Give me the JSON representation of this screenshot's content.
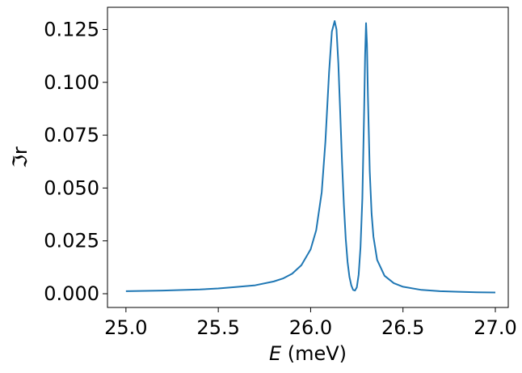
{
  "chart_data": {
    "type": "line",
    "title": "",
    "xlabel_symbol": "E",
    "xlabel_unit": " (meV)",
    "ylabel": "ℑr",
    "xlim": [
      24.9,
      27.07
    ],
    "ylim": [
      -0.0065,
      0.1355
    ],
    "xticks": [
      25.0,
      25.5,
      26.0,
      26.5,
      27.0
    ],
    "xtick_labels": [
      "25.0",
      "25.5",
      "26.0",
      "26.5",
      "27.0"
    ],
    "yticks": [
      0.0,
      0.025,
      0.05,
      0.075,
      0.1,
      0.125
    ],
    "ytick_labels": [
      "0.000",
      "0.025",
      "0.050",
      "0.075",
      "0.100",
      "0.125"
    ],
    "grid": false,
    "series": [
      {
        "color": "#1f77b4",
        "x": [
          25.0,
          25.2,
          25.4,
          25.5,
          25.6,
          25.7,
          25.8,
          25.85,
          25.9,
          25.95,
          26.0,
          26.03,
          26.06,
          26.08,
          26.1,
          26.115,
          26.13,
          26.14,
          26.15,
          26.16,
          26.17,
          26.18,
          26.19,
          26.2,
          26.21,
          26.22,
          26.23,
          26.24,
          26.25,
          26.26,
          26.27,
          26.28,
          26.29,
          26.295,
          26.3,
          26.305,
          26.31,
          26.32,
          26.33,
          26.34,
          26.36,
          26.4,
          26.45,
          26.5,
          26.6,
          26.7,
          26.8,
          26.9,
          27.0
        ],
        "y": [
          0.0012,
          0.0015,
          0.002,
          0.0025,
          0.0032,
          0.004,
          0.0058,
          0.0072,
          0.0095,
          0.0135,
          0.021,
          0.03,
          0.048,
          0.072,
          0.105,
          0.124,
          0.129,
          0.125,
          0.109,
          0.086,
          0.062,
          0.042,
          0.026,
          0.015,
          0.008,
          0.004,
          0.0018,
          0.0015,
          0.003,
          0.009,
          0.022,
          0.045,
          0.088,
          0.113,
          0.128,
          0.118,
          0.094,
          0.058,
          0.038,
          0.027,
          0.016,
          0.0085,
          0.005,
          0.0033,
          0.0018,
          0.0012,
          0.0009,
          0.0007,
          0.0006
        ]
      }
    ]
  }
}
